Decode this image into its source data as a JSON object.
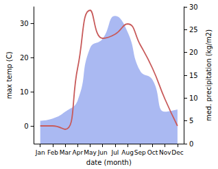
{
  "chart_data": {
    "type": "line",
    "xlabel": "date (month)",
    "ylabel": "max temp (C)",
    "y2label": "med. precipitation (kg/m2)",
    "categories": [
      "Jan",
      "Feb",
      "Mar",
      "Apr",
      "May",
      "Jun",
      "Jul",
      "Aug",
      "Sep",
      "Oct",
      "Nov",
      "Dec"
    ],
    "series": [
      {
        "type": "area",
        "axis": "y2",
        "color": "#aab9f2",
        "values": [
          5,
          5.5,
          7,
          9.5,
          21,
          23,
          28,
          24.5,
          16,
          14,
          7,
          7.5
        ]
      },
      {
        "type": "line",
        "color": "#c85a5a",
        "values": [
          0,
          0,
          -1,
          17,
          33.8,
          25.6,
          26.8,
          29.8,
          23.8,
          16.8,
          7.8,
          0
        ]
      }
    ],
    "ylim": [
      -5.2,
      34.8
    ],
    "yticks": [
      0,
      10,
      20,
      30
    ],
    "y2lim": [
      0,
      30
    ],
    "y2ticks": [
      0,
      5,
      10,
      15,
      20,
      25,
      30
    ],
    "grid": false
  }
}
